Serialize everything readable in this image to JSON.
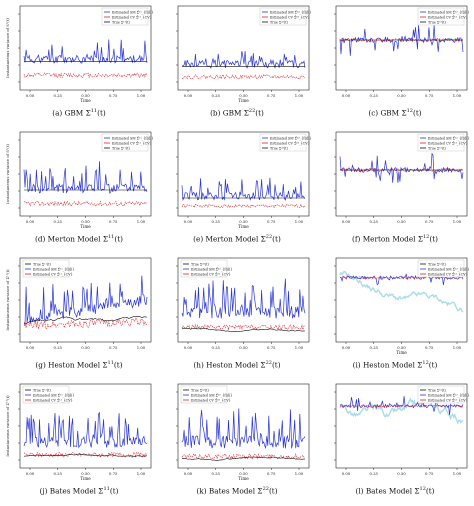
{
  "colors": {
    "sm": "#2a35d6",
    "cv": "#e0202a",
    "true": "#111111",
    "true_light": "#a9dbe8"
  },
  "chart_data": [
    {
      "type": "line",
      "row": 0,
      "col": 0,
      "caption": "(a) GBM Σ¹¹(t)",
      "caption_prefix": "(a) GBM Σ",
      "caption_sup": "11",
      "caption_suffix": "(t)",
      "xlabel": "Time",
      "ylabel": "Instantaneous variance of S¹(t)",
      "xlim": [
        0,
        1
      ],
      "xticks": [
        "0.00",
        "0.25",
        "0.50",
        "0.75",
        "1.00"
      ],
      "legend": [
        "Estimated SM Σ̂¹¹_{f(d)}",
        "Estimated CV Σ̂¹¹_{CV}",
        "True Σ¹¹(t)"
      ],
      "legend_pos": "top-right",
      "series": [
        {
          "name": "Estimated SM",
          "kind": "spiky",
          "base": 0.36,
          "noise": 0.05,
          "spike_p": 0.22,
          "spike_h": 0.28,
          "seed": 11
        },
        {
          "name": "Estimated CV",
          "kind": "noisy",
          "base": 0.16,
          "noise": 0.03,
          "seed": 12
        },
        {
          "name": "True",
          "kind": "flat",
          "base": 0.33
        }
      ]
    },
    {
      "type": "line",
      "row": 0,
      "col": 1,
      "caption": "(b) GBM Σ²²(t)",
      "caption_prefix": "(b) GBM Σ",
      "caption_sup": "22",
      "caption_suffix": "(t)",
      "xlabel": "Time",
      "ylabel": "",
      "xlim": [
        0,
        1
      ],
      "xticks": [
        "0.00",
        "0.25",
        "0.50",
        "0.75",
        "1.00"
      ],
      "legend": [
        "Estimated SM Σ̂²²_{f(d)}",
        "Estimated CV Σ̂²²_{CV}",
        "True Σ²²(t)"
      ],
      "legend_pos": "top-right",
      "series": [
        {
          "name": "Estimated SM",
          "kind": "spiky",
          "base": 0.3,
          "noise": 0.05,
          "spike_p": 0.16,
          "spike_h": 0.22,
          "seed": 21
        },
        {
          "name": "Estimated CV",
          "kind": "noisy",
          "base": 0.14,
          "noise": 0.025,
          "seed": 22
        },
        {
          "name": "True",
          "kind": "flat",
          "base": 0.27
        }
      ]
    },
    {
      "type": "line",
      "row": 0,
      "col": 2,
      "caption": "(c) GBM Σ¹²(t)",
      "caption_prefix": "(c) GBM Σ",
      "caption_sup": "12",
      "caption_suffix": "(t)",
      "xlabel": "",
      "ylabel": "",
      "xlim": [
        0,
        1
      ],
      "xticks": [
        "0.00",
        "0.25",
        "0.50",
        "0.75",
        "1.00"
      ],
      "legend": [
        "Estimated SM Σ̂¹²_{f(d)}",
        "Estimated CV Σ̂¹²_{CV}",
        "True Σ¹²(t)"
      ],
      "legend_pos": "top-right",
      "series": [
        {
          "name": "Estimated SM",
          "kind": "bispiky",
          "base": 0.6,
          "noise": 0.03,
          "spike_p": 0.2,
          "spike_h": 0.18,
          "seed": 31
        },
        {
          "name": "Estimated CV",
          "kind": "noisy",
          "base": 0.6,
          "noise": 0.02,
          "seed": 32
        },
        {
          "name": "True",
          "kind": "flat",
          "base": 0.6
        }
      ]
    },
    {
      "type": "line",
      "row": 1,
      "col": 0,
      "caption": "(d) Merton Model Σ¹¹(t)",
      "caption_prefix": "(d) Merton Model Σ",
      "caption_sup": "11",
      "caption_suffix": "(t)",
      "xlabel": "Time",
      "ylabel": "Instantaneous variance of S¹(t)",
      "xlim": [
        0,
        1
      ],
      "xticks": [
        "0.00",
        "0.25",
        "0.50",
        "0.75",
        "1.00"
      ],
      "legend": [
        "Estimated SM Σ̂¹¹_{f(d)}",
        "Estimated CV Σ̂¹¹_{CV}",
        "True Σ¹¹(t)"
      ],
      "legend_pos": "top-right",
      "series": [
        {
          "name": "Estimated SM",
          "kind": "spiky",
          "base": 0.32,
          "noise": 0.06,
          "spike_p": 0.3,
          "spike_h": 0.32,
          "seed": 41
        },
        {
          "name": "Estimated CV",
          "kind": "noisy",
          "base": 0.13,
          "noise": 0.03,
          "seed": 42
        },
        {
          "name": "True",
          "kind": "flat",
          "base": 0.3
        }
      ]
    },
    {
      "type": "line",
      "row": 1,
      "col": 1,
      "caption": "(e) Merton Model Σ²²(t)",
      "caption_prefix": "(e) Merton Model Σ",
      "caption_sup": "22",
      "caption_suffix": "(t)",
      "xlabel": "Time",
      "ylabel": "",
      "xlim": [
        0,
        1
      ],
      "xticks": [
        "0.00",
        "0.25",
        "0.50",
        "0.75",
        "1.00"
      ],
      "legend": [
        "Estimated SM Σ̂²²_{f(d)}",
        "Estimated CV Σ̂²²_{CV}",
        "True Σ²²(t)"
      ],
      "legend_pos": "top-right",
      "series": [
        {
          "name": "Estimated SM",
          "kind": "spiky",
          "base": 0.22,
          "noise": 0.05,
          "spike_p": 0.25,
          "spike_h": 0.22,
          "seed": 51
        },
        {
          "name": "Estimated CV",
          "kind": "noisy",
          "base": 0.1,
          "noise": 0.02,
          "seed": 52
        },
        {
          "name": "True",
          "kind": "flat",
          "base": 0.2
        }
      ]
    },
    {
      "type": "line",
      "row": 1,
      "col": 2,
      "caption": "(f) Merton Model Σ¹²(t)",
      "caption_prefix": "(f) Merton Model Σ",
      "caption_sup": "12",
      "caption_suffix": "(t)",
      "xlabel": "",
      "ylabel": "",
      "xlim": [
        0,
        1
      ],
      "xticks": [
        "0.00",
        "0.25",
        "0.50",
        "0.75",
        "1.00"
      ],
      "legend": [
        "Estimated SM Σ̂¹²_{f(d)}",
        "Estimated CV Σ̂¹²_{CV}",
        "True Σ¹²(t)"
      ],
      "legend_pos": "top-right",
      "series": [
        {
          "name": "Estimated SM",
          "kind": "bispiky",
          "base": 0.55,
          "noise": 0.03,
          "spike_p": 0.25,
          "spike_h": 0.22,
          "seed": 61
        },
        {
          "name": "Estimated CV",
          "kind": "noisy",
          "base": 0.55,
          "noise": 0.02,
          "seed": 62
        },
        {
          "name": "True",
          "kind": "flat",
          "base": 0.55
        }
      ]
    },
    {
      "type": "line",
      "row": 2,
      "col": 0,
      "caption": "(g) Heston Model Σ¹¹(t)",
      "caption_prefix": "(g) Heston Model Σ",
      "caption_sup": "11",
      "caption_suffix": "(t)",
      "xlabel": "",
      "ylabel": "Instantaneous variance of Σ¹¹(t)",
      "xlim": [
        0,
        1
      ],
      "xticks": [
        "0.00",
        "0.25",
        "0.50",
        "0.75",
        "1.00"
      ],
      "legend": [
        "True Σ¹¹(t)",
        "Estimated SM Σ̂¹¹_{f(d)}",
        "Estimated CV Σ̂¹¹_{CV}"
      ],
      "legend_pos": "top-left",
      "series": [
        {
          "name": "Estimated SM",
          "kind": "spiky",
          "base": 0.25,
          "noise": 0.07,
          "spike_p": 0.3,
          "spike_h": 0.35,
          "trend": 0.25,
          "seed": 71
        },
        {
          "name": "Estimated CV",
          "kind": "noisy",
          "base": 0.18,
          "noise": 0.05,
          "trend": 0.05,
          "seed": 72
        },
        {
          "name": "True",
          "kind": "walk",
          "base": 0.2,
          "noise": 0.02,
          "seed": 73
        }
      ]
    },
    {
      "type": "line",
      "row": 2,
      "col": 1,
      "caption": "(h) Heston Model Σ²²(t)",
      "caption_prefix": "(h) Heston Model Σ",
      "caption_sup": "22",
      "caption_suffix": "(t)",
      "xlabel": "",
      "ylabel": "",
      "xlim": [
        0,
        1
      ],
      "xticks": [
        "0.00",
        "0.25",
        "0.50",
        "0.75",
        "1.00"
      ],
      "legend": [
        "True Σ²²(t)",
        "Estimated SM Σ̂²²_{f(d)}",
        "Estimated CV Σ̂²²_{CV}"
      ],
      "legend_pos": "top-left",
      "series": [
        {
          "name": "Estimated SM",
          "kind": "spiky",
          "base": 0.35,
          "noise": 0.08,
          "spike_p": 0.35,
          "spike_h": 0.35,
          "seed": 81
        },
        {
          "name": "Estimated CV",
          "kind": "noisy",
          "base": 0.16,
          "noise": 0.03,
          "seed": 82
        },
        {
          "name": "True",
          "kind": "walk",
          "base": 0.15,
          "noise": 0.01,
          "seed": 83
        }
      ]
    },
    {
      "type": "line",
      "row": 2,
      "col": 2,
      "caption": "(i) Heston Model Σ¹²(t)",
      "caption_prefix": "(i) Heston Model Σ",
      "caption_sup": "12",
      "caption_suffix": "(t)",
      "xlabel": "Time",
      "ylabel": "",
      "xlim": [
        0,
        1
      ],
      "xticks": [
        "0.00",
        "0.25",
        "0.50",
        "0.75",
        "1.00"
      ],
      "legend": [
        "True Σ¹²(t)",
        "Estimated SM Σ̂¹²_{f(d)}",
        "Estimated CV Σ̂¹²_{CV}"
      ],
      "legend_pos": "top-right",
      "series": [
        {
          "name": "True",
          "kind": "drift",
          "base": 0.8,
          "noise": 0.03,
          "trend": -0.65,
          "seed": 91
        },
        {
          "name": "Estimated SM",
          "kind": "bispiky",
          "base": 0.78,
          "noise": 0.02,
          "spike_p": 0.12,
          "spike_h": 0.08,
          "seed": 92
        },
        {
          "name": "Estimated CV",
          "kind": "noisy",
          "base": 0.78,
          "noise": 0.015,
          "seed": 93
        }
      ]
    },
    {
      "type": "line",
      "row": 3,
      "col": 0,
      "caption": "(j) Bates Model Σ¹¹(t)",
      "caption_prefix": "(j) Bates Model Σ",
      "caption_sup": "11",
      "caption_suffix": "(t)",
      "xlabel": "Time",
      "ylabel": "Instantaneous variance of Σ¹¹(t)",
      "xlim": [
        0,
        1
      ],
      "xticks": [
        "0.00",
        "0.25",
        "0.50",
        "0.75",
        "1.00"
      ],
      "legend": [
        "True Σ¹¹(t)",
        "Estimated SM Σ̂¹¹_{f(d)}",
        "Estimated CV Σ̂¹¹_{CV}"
      ],
      "legend_pos": "top-left",
      "series": [
        {
          "name": "Estimated SM",
          "kind": "spiky",
          "base": 0.3,
          "noise": 0.07,
          "spike_p": 0.35,
          "spike_h": 0.35,
          "seed": 101
        },
        {
          "name": "Estimated CV",
          "kind": "noisy",
          "base": 0.14,
          "noise": 0.03,
          "seed": 102
        },
        {
          "name": "True",
          "kind": "walk",
          "base": 0.12,
          "noise": 0.01,
          "seed": 103
        }
      ]
    },
    {
      "type": "line",
      "row": 3,
      "col": 1,
      "caption": "(k) Bates Model Σ²²(t)",
      "caption_prefix": "(k) Bates Model Σ",
      "caption_sup": "22",
      "caption_suffix": "(t)",
      "xlabel": "Time",
      "ylabel": "",
      "xlim": [
        0,
        1
      ],
      "xticks": [
        "0.00",
        "0.25",
        "0.50",
        "0.75",
        "1.00"
      ],
      "legend": [
        "True Σ²²(t)",
        "Estimated SM Σ̂²²_{f(d)}",
        "Estimated CV Σ̂²²_{CV}"
      ],
      "legend_pos": "top-left",
      "series": [
        {
          "name": "Estimated SM",
          "kind": "spiky",
          "base": 0.3,
          "noise": 0.08,
          "spike_p": 0.3,
          "spike_h": 0.4,
          "seed": 111
        },
        {
          "name": "Estimated CV",
          "kind": "noisy",
          "base": 0.12,
          "noise": 0.03,
          "seed": 112
        },
        {
          "name": "True",
          "kind": "walk",
          "base": 0.1,
          "noise": 0.01,
          "seed": 113
        }
      ]
    },
    {
      "type": "line",
      "row": 3,
      "col": 2,
      "caption": "(l) Bates Model Σ¹²(t)",
      "caption_prefix": "(l) Bates Model Σ",
      "caption_sup": "12",
      "caption_suffix": "(t)",
      "xlabel": "",
      "ylabel": "",
      "xlim": [
        0,
        1
      ],
      "xticks": [
        "0.00",
        "0.25",
        "0.50",
        "0.75",
        "1.00"
      ],
      "legend": [
        "True Σ¹²(t)",
        "Estimated SM Σ̂¹²_{f(d)}",
        "Estimated CV Σ̂¹²_{CV}"
      ],
      "legend_pos": "top-right",
      "series": [
        {
          "name": "True",
          "kind": "drift",
          "base": 0.7,
          "noise": 0.04,
          "trend": -0.6,
          "seed": 121
        },
        {
          "name": "Estimated SM",
          "kind": "bispiky",
          "base": 0.75,
          "noise": 0.02,
          "spike_p": 0.15,
          "spike_h": 0.12,
          "seed": 122
        },
        {
          "name": "Estimated CV",
          "kind": "noisy",
          "base": 0.75,
          "noise": 0.015,
          "seed": 123
        }
      ]
    }
  ]
}
